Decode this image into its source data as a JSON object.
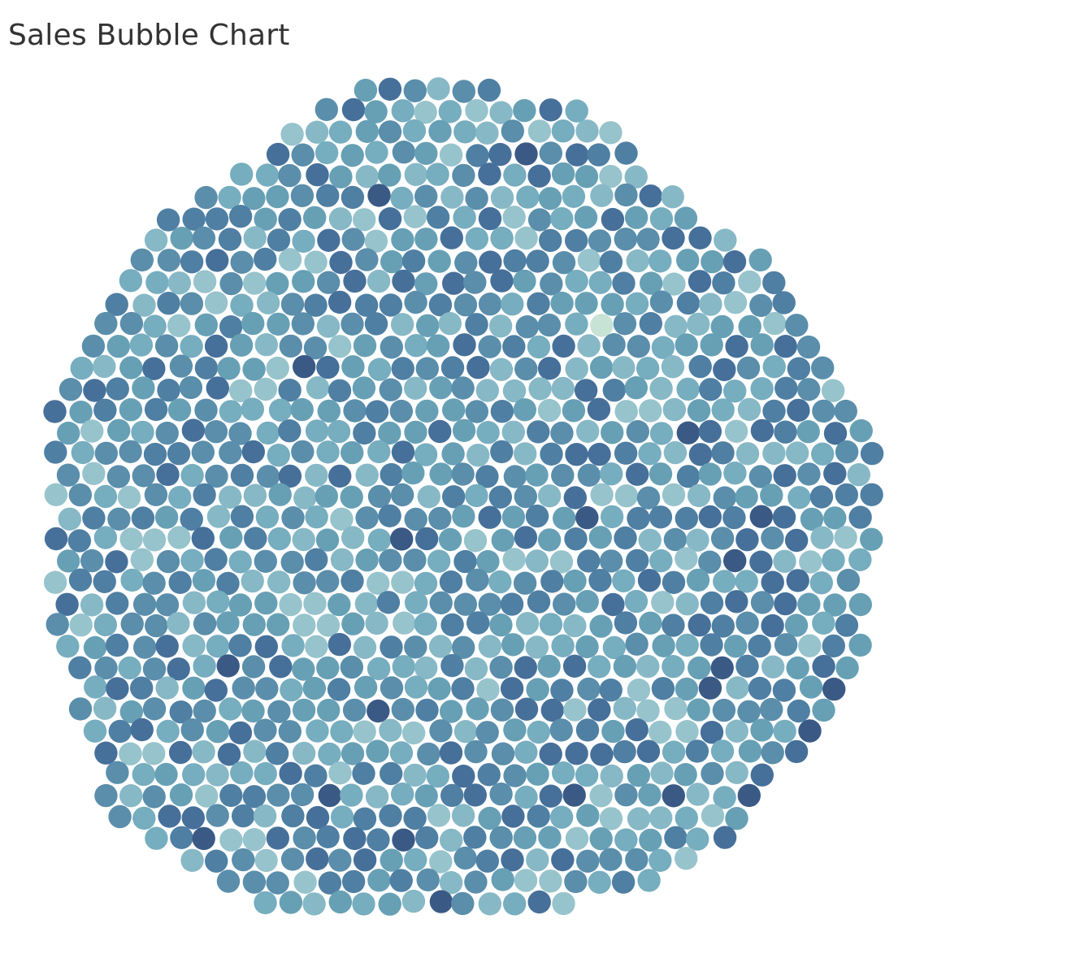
{
  "chart_data": {
    "type": "scatter",
    "subtype": "packed-bubble",
    "title": "Sales Bubble Chart",
    "xlabel": "",
    "ylabel": "",
    "legend": "none",
    "grid": false,
    "marks": {
      "shape": "circle",
      "approx_count": 1000,
      "uniform_size": true,
      "encoding": "color intensity varies per bubble"
    },
    "colors": {
      "darkest": "#3a5a85",
      "dark": "#4a7598",
      "medium_dark": "#5a8eab",
      "medium": "#6fa6b8",
      "light": "#8ebfca",
      "lightest": "#c7e3d5",
      "background": "#ffffff",
      "title": "#333333"
    },
    "palette": [
      "#3a5a85",
      "#46709a",
      "#4f7fa3",
      "#5a8eab",
      "#67a0b5",
      "#76adbf",
      "#87b8c6",
      "#97c3cc"
    ],
    "palette_weights": [
      2,
      14,
      16,
      18,
      16,
      14,
      12,
      8
    ]
  }
}
